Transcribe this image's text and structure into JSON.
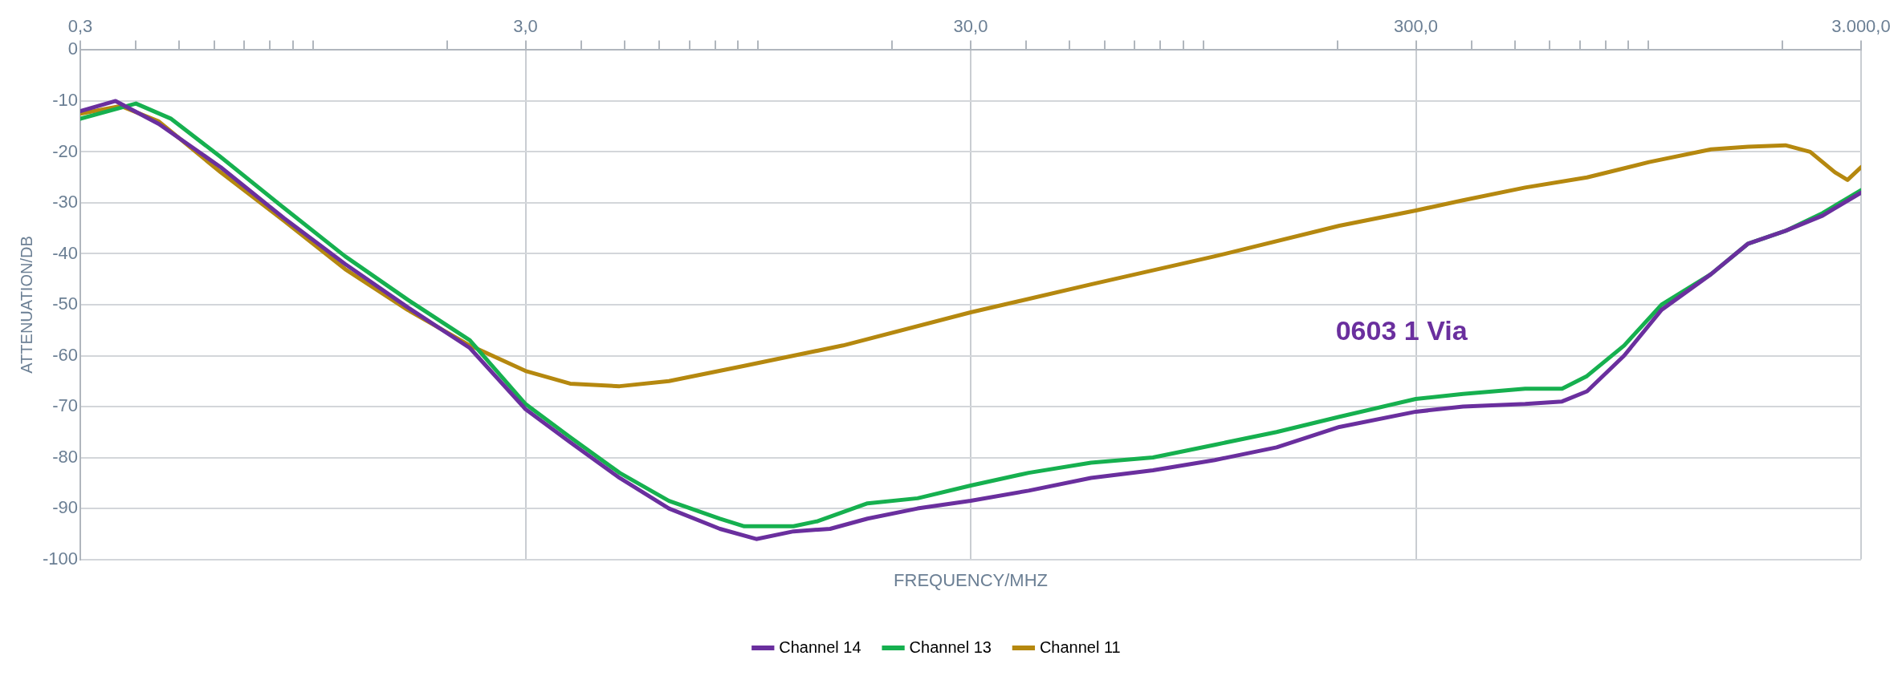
{
  "chart_data": {
    "type": "line",
    "xlabel": "FREQUENCY/MHZ",
    "ylabel": "ATTENUATION/DB",
    "log": "x",
    "grid": true,
    "legend": "bottom",
    "marker": "none",
    "line_style": "solid",
    "xlim": [
      0.3,
      3000
    ],
    "ylim": [
      -100,
      0
    ],
    "xticks": [
      {
        "value": 0.3,
        "label": "0,3"
      },
      {
        "value": 0.4,
        "label": null
      },
      {
        "value": 0.5,
        "label": null
      },
      {
        "value": 0.6,
        "label": null
      },
      {
        "value": 0.7,
        "label": null
      },
      {
        "value": 0.8,
        "label": null
      },
      {
        "value": 0.9,
        "label": null
      },
      {
        "value": 1,
        "label": null
      },
      {
        "value": 2,
        "label": null
      },
      {
        "value": 3,
        "label": "3,0"
      },
      {
        "value": 4,
        "label": null
      },
      {
        "value": 5,
        "label": null
      },
      {
        "value": 6,
        "label": null
      },
      {
        "value": 7,
        "label": null
      },
      {
        "value": 8,
        "label": null
      },
      {
        "value": 9,
        "label": null
      },
      {
        "value": 10,
        "label": null
      },
      {
        "value": 20,
        "label": null
      },
      {
        "value": 30,
        "label": "30,0"
      },
      {
        "value": 40,
        "label": null
      },
      {
        "value": 50,
        "label": null
      },
      {
        "value": 60,
        "label": null
      },
      {
        "value": 70,
        "label": null
      },
      {
        "value": 80,
        "label": null
      },
      {
        "value": 90,
        "label": null
      },
      {
        "value": 100,
        "label": null
      },
      {
        "value": 200,
        "label": null
      },
      {
        "value": 300,
        "label": "300,0"
      },
      {
        "value": 400,
        "label": null
      },
      {
        "value": 500,
        "label": null
      },
      {
        "value": 600,
        "label": null
      },
      {
        "value": 700,
        "label": null
      },
      {
        "value": 800,
        "label": null
      },
      {
        "value": 900,
        "label": null
      },
      {
        "value": 1000,
        "label": null
      },
      {
        "value": 2000,
        "label": null
      },
      {
        "value": 3000,
        "label": "3.000,0"
      }
    ],
    "yticks": [
      -100,
      -90,
      -80,
      -70,
      -60,
      -50,
      -40,
      -30,
      -20,
      -10,
      0
    ],
    "annotations": [
      "0603 1 Via"
    ],
    "series": [
      {
        "name": "Channel 14",
        "color": "#6a2f9e",
        "x": [
          0.3,
          0.36,
          0.45,
          0.62,
          0.86,
          1.18,
          1.63,
          2.25,
          3,
          3.78,
          4.88,
          6.3,
          8.2,
          9.9,
          12,
          14.5,
          17.6,
          22.8,
          30,
          40.5,
          55.9,
          77,
          106,
          146,
          202,
          300,
          383,
          528,
          639,
          727,
          881,
          1069,
          1381,
          1673,
          2029,
          2460,
          3000
        ],
        "values": [
          -12,
          -10,
          -14.5,
          -23,
          -33,
          -42,
          -50.5,
          -58.5,
          -70.5,
          -77,
          -84,
          -90,
          -94,
          -96,
          -94.5,
          -94,
          -92,
          -90,
          -88.5,
          -86.5,
          -84,
          -82.5,
          -80.5,
          -78,
          -74,
          -71,
          -70,
          -69.5,
          -69,
          -67,
          -60,
          -51,
          -44,
          -38,
          -35.5,
          -32.5,
          -28
        ]
      },
      {
        "name": "Channel 13",
        "color": "#16b04f",
        "x": [
          0.3,
          0.4,
          0.48,
          0.62,
          0.86,
          1.18,
          1.63,
          2.25,
          3,
          3.78,
          4.88,
          6.3,
          8.2,
          9.3,
          12,
          13.6,
          17.6,
          22.8,
          30,
          40.5,
          55.9,
          77,
          106,
          146,
          202,
          300,
          383,
          528,
          639,
          727,
          881,
          1069,
          1381,
          1673,
          2029,
          2460,
          3000
        ],
        "values": [
          -13.5,
          -10.5,
          -13.5,
          -21,
          -31,
          -40.5,
          -49,
          -57,
          -69.5,
          -76,
          -83,
          -88.5,
          -92,
          -93.5,
          -93.5,
          -92.5,
          -89,
          -88,
          -85.5,
          -83,
          -81,
          -80,
          -77.5,
          -75,
          -72,
          -68.5,
          -67.5,
          -66.5,
          -66.5,
          -64,
          -58,
          -50,
          -44,
          -38,
          -35.5,
          -32,
          -27.5
        ]
      },
      {
        "name": "Channel 11",
        "color": "#b5880f",
        "x": [
          0.3,
          0.37,
          0.45,
          0.62,
          0.86,
          1.18,
          1.63,
          2.25,
          3,
          3.78,
          4.88,
          6.3,
          9.3,
          15.5,
          30,
          55.9,
          106,
          202,
          300,
          383,
          528,
          727,
          1002,
          1381,
          1673,
          2029,
          2306,
          2621,
          2797,
          3000
        ],
        "values": [
          -12.5,
          -11,
          -14,
          -24,
          -33.5,
          -43,
          -51,
          -58,
          -63,
          -65.5,
          -66,
          -65,
          -62,
          -58,
          -51.5,
          -46,
          -40.5,
          -34.5,
          -31.5,
          -29.5,
          -27,
          -25,
          -22,
          -19.5,
          -19,
          -18.7,
          -20,
          -24,
          -25.5,
          -23
        ]
      }
    ]
  }
}
